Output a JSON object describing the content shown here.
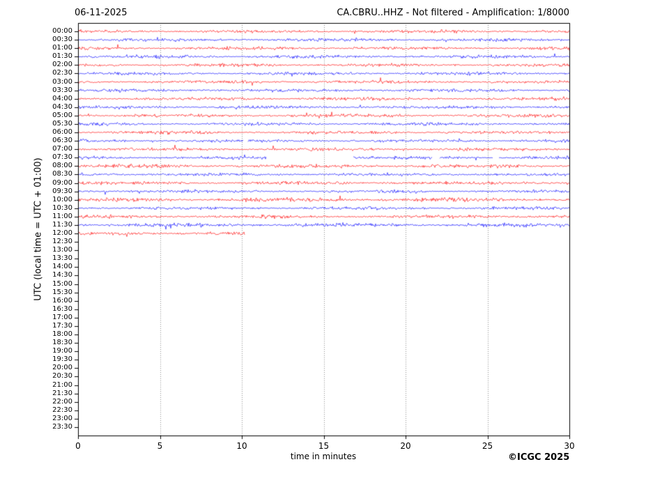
{
  "footer": {
    "copyright": "©ICGC 2025"
  },
  "chart_data": {
    "type": "line",
    "subtype": "helicorder-seismogram",
    "title_left": "06-11-2025",
    "title_right": "CA.CBRU..HHZ - Not filtered - Amplification: 1/8000",
    "xlabel": "time in minutes",
    "ylabel": "UTC (local time = UTC + 01:00)",
    "xlim": [
      0,
      30
    ],
    "x_ticks": [
      0,
      5,
      10,
      15,
      20,
      25,
      30
    ],
    "grid_x": [
      5,
      10,
      15,
      20,
      25
    ],
    "grid_style": "dotted",
    "minutes_per_row": 30,
    "colors": {
      "even_row_trace": "#ff0000",
      "odd_row_trace": "#0000ff",
      "grid": "#8a8a8a",
      "axis": "#000000",
      "background": "#ffffff"
    },
    "rows": [
      {
        "label": "00:00",
        "color": "#ff0000",
        "amp": 1.0,
        "segments": [
          [
            0,
            30
          ]
        ]
      },
      {
        "label": "00:30",
        "color": "#0000ff",
        "amp": 1.0,
        "segments": [
          [
            0,
            30
          ]
        ]
      },
      {
        "label": "01:00",
        "color": "#ff0000",
        "amp": 1.1,
        "segments": [
          [
            0,
            30
          ]
        ]
      },
      {
        "label": "01:30",
        "color": "#0000ff",
        "amp": 1.1,
        "segments": [
          [
            0,
            30
          ]
        ]
      },
      {
        "label": "02:00",
        "color": "#ff0000",
        "amp": 1.0,
        "segments": [
          [
            0,
            30
          ]
        ]
      },
      {
        "label": "02:30",
        "color": "#0000ff",
        "amp": 1.0,
        "segments": [
          [
            0,
            30
          ]
        ]
      },
      {
        "label": "03:00",
        "color": "#ff0000",
        "amp": 1.0,
        "segments": [
          [
            0,
            30
          ]
        ]
      },
      {
        "label": "03:30",
        "color": "#0000ff",
        "amp": 1.0,
        "segments": [
          [
            0,
            30
          ]
        ]
      },
      {
        "label": "04:00",
        "color": "#ff0000",
        "amp": 1.0,
        "segments": [
          [
            0,
            30
          ]
        ]
      },
      {
        "label": "04:30",
        "color": "#0000ff",
        "amp": 1.1,
        "segments": [
          [
            0,
            30
          ]
        ]
      },
      {
        "label": "05:00",
        "color": "#ff0000",
        "amp": 1.1,
        "segments": [
          [
            0,
            30
          ]
        ]
      },
      {
        "label": "05:30",
        "color": "#0000ff",
        "amp": 1.0,
        "segments": [
          [
            0,
            30
          ]
        ]
      },
      {
        "label": "06:00",
        "color": "#ff0000",
        "amp": 1.0,
        "segments": [
          [
            0,
            30
          ]
        ]
      },
      {
        "label": "06:30",
        "color": "#0000ff",
        "amp": 1.0,
        "segments": [
          [
            0,
            10.1
          ],
          [
            10.4,
            30
          ]
        ]
      },
      {
        "label": "07:00",
        "color": "#ff0000",
        "amp": 1.0,
        "segments": [
          [
            0,
            30
          ]
        ]
      },
      {
        "label": "07:30",
        "color": "#0000ff",
        "amp": 1.0,
        "segments": [
          [
            0,
            11.5
          ],
          [
            16.8,
            21.6
          ],
          [
            22.1,
            25.3
          ],
          [
            25.7,
            30
          ]
        ]
      },
      {
        "label": "08:00",
        "color": "#ff0000",
        "amp": 1.2,
        "segments": [
          [
            0,
            30
          ]
        ]
      },
      {
        "label": "08:30",
        "color": "#0000ff",
        "amp": 1.0,
        "segments": [
          [
            0,
            30
          ]
        ]
      },
      {
        "label": "09:00",
        "color": "#ff0000",
        "amp": 1.1,
        "segments": [
          [
            0,
            30
          ]
        ]
      },
      {
        "label": "09:30",
        "color": "#0000ff",
        "amp": 1.0,
        "segments": [
          [
            0,
            30
          ]
        ]
      },
      {
        "label": "10:00",
        "color": "#ff0000",
        "amp": 1.3,
        "segments": [
          [
            0,
            30
          ]
        ]
      },
      {
        "label": "10:30",
        "color": "#0000ff",
        "amp": 1.0,
        "segments": [
          [
            0,
            30
          ]
        ]
      },
      {
        "label": "11:00",
        "color": "#ff0000",
        "amp": 1.1,
        "segments": [
          [
            0,
            30
          ]
        ]
      },
      {
        "label": "11:30",
        "color": "#0000ff",
        "amp": 1.3,
        "segments": [
          [
            0,
            30
          ]
        ]
      },
      {
        "label": "12:00",
        "color": "#ff0000",
        "amp": 1.1,
        "segments": [
          [
            0,
            10.15
          ]
        ]
      },
      {
        "label": "12:30",
        "color": "#0000ff",
        "amp": 1.0,
        "segments": []
      },
      {
        "label": "13:00",
        "color": "#ff0000",
        "amp": 1.0,
        "segments": []
      },
      {
        "label": "13:30",
        "color": "#0000ff",
        "amp": 1.0,
        "segments": []
      },
      {
        "label": "14:00",
        "color": "#ff0000",
        "amp": 1.0,
        "segments": []
      },
      {
        "label": "14:30",
        "color": "#0000ff",
        "amp": 1.0,
        "segments": []
      },
      {
        "label": "15:00",
        "color": "#ff0000",
        "amp": 1.0,
        "segments": []
      },
      {
        "label": "15:30",
        "color": "#0000ff",
        "amp": 1.0,
        "segments": []
      },
      {
        "label": "16:00",
        "color": "#ff0000",
        "amp": 1.0,
        "segments": []
      },
      {
        "label": "16:30",
        "color": "#0000ff",
        "amp": 1.0,
        "segments": []
      },
      {
        "label": "17:00",
        "color": "#ff0000",
        "amp": 1.0,
        "segments": []
      },
      {
        "label": "17:30",
        "color": "#0000ff",
        "amp": 1.0,
        "segments": []
      },
      {
        "label": "18:00",
        "color": "#ff0000",
        "amp": 1.0,
        "segments": []
      },
      {
        "label": "18:30",
        "color": "#0000ff",
        "amp": 1.0,
        "segments": []
      },
      {
        "label": "19:00",
        "color": "#ff0000",
        "amp": 1.0,
        "segments": []
      },
      {
        "label": "19:30",
        "color": "#0000ff",
        "amp": 1.0,
        "segments": []
      },
      {
        "label": "20:00",
        "color": "#ff0000",
        "amp": 1.0,
        "segments": []
      },
      {
        "label": "20:30",
        "color": "#0000ff",
        "amp": 1.0,
        "segments": []
      },
      {
        "label": "21:00",
        "color": "#ff0000",
        "amp": 1.0,
        "segments": []
      },
      {
        "label": "21:30",
        "color": "#0000ff",
        "amp": 1.0,
        "segments": []
      },
      {
        "label": "22:00",
        "color": "#ff0000",
        "amp": 1.0,
        "segments": []
      },
      {
        "label": "22:30",
        "color": "#0000ff",
        "amp": 1.0,
        "segments": []
      },
      {
        "label": "23:00",
        "color": "#ff0000",
        "amp": 1.0,
        "segments": []
      },
      {
        "label": "23:30",
        "color": "#0000ff",
        "amp": 1.0,
        "segments": []
      }
    ]
  }
}
